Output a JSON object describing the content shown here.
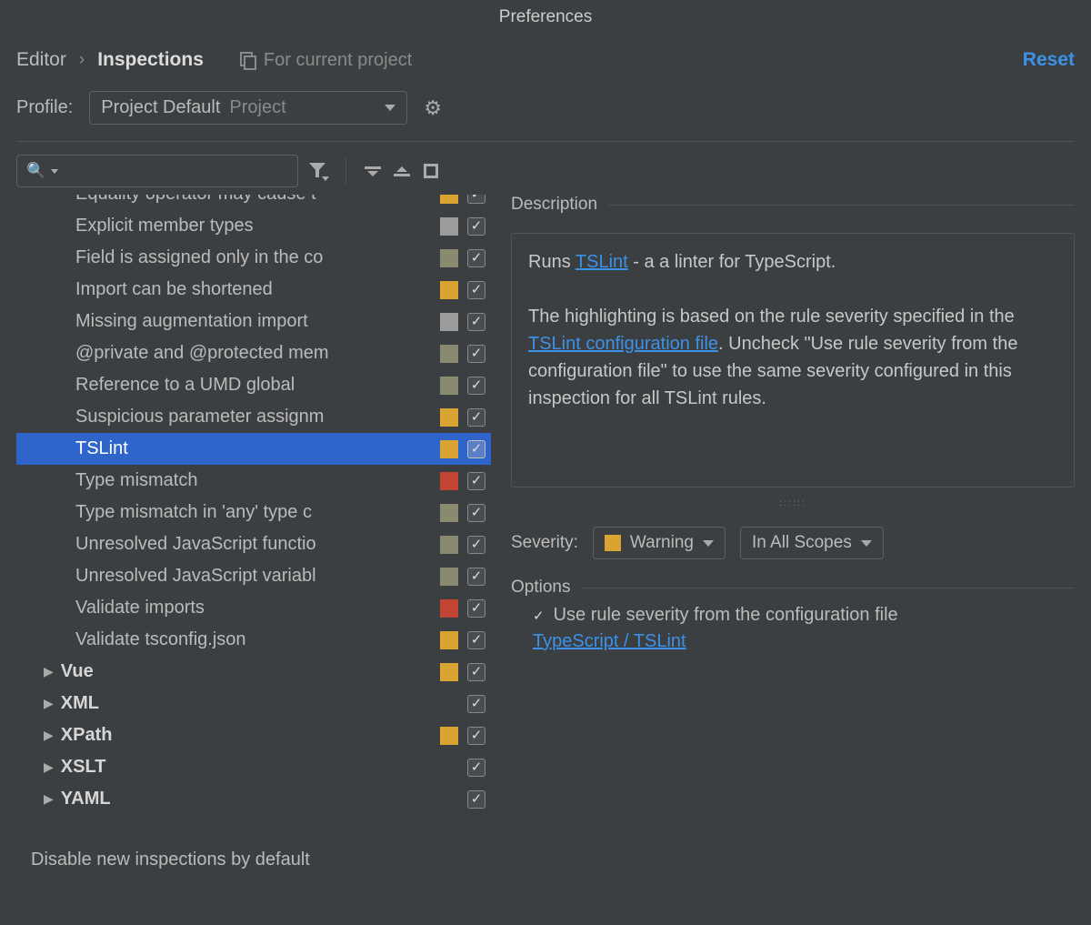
{
  "colors": {
    "accent": "#3b92e8",
    "selection": "#2f65ca",
    "sev_warning": "#d9a431",
    "sev_weak": "#8a8a70",
    "sev_gray": "#9b9b9b",
    "sev_error": "#c24432"
  },
  "window": {
    "title": "Preferences"
  },
  "header": {
    "bc_root": "Editor",
    "bc_current": "Inspections",
    "scope": "For current project",
    "reset": "Reset"
  },
  "profile": {
    "label": "Profile:",
    "name": "Project Default",
    "suffix": "Project"
  },
  "tree": {
    "items": [
      {
        "label": "Equality operator may cause t",
        "indent": 65,
        "sev": "#d9a431",
        "checked": true,
        "cutoff": true
      },
      {
        "label": "Explicit member types",
        "indent": 65,
        "sev": "#9b9b9b",
        "checked": true
      },
      {
        "label": "Field is assigned only in the co",
        "indent": 65,
        "sev": "#8a8a70",
        "checked": true
      },
      {
        "label": "Import can be shortened",
        "indent": 65,
        "sev": "#d9a431",
        "checked": true
      },
      {
        "label": "Missing augmentation import",
        "indent": 65,
        "sev": "#9b9b9b",
        "checked": true
      },
      {
        "label": "@private and @protected mem",
        "indent": 65,
        "sev": "#8a8a70",
        "checked": true
      },
      {
        "label": "Reference to a UMD global",
        "indent": 65,
        "sev": "#8a8a70",
        "checked": true
      },
      {
        "label": "Suspicious parameter assignm",
        "indent": 65,
        "sev": "#d9a431",
        "checked": true
      },
      {
        "label": "TSLint",
        "indent": 65,
        "sev": "#d9a431",
        "checked": true,
        "selected": true
      },
      {
        "label": "Type mismatch",
        "indent": 65,
        "sev": "#c24432",
        "checked": true
      },
      {
        "label": "Type mismatch in 'any' type c",
        "indent": 65,
        "sev": "#8a8a70",
        "checked": true
      },
      {
        "label": "Unresolved JavaScript functio",
        "indent": 65,
        "sev": "#8a8a70",
        "checked": true
      },
      {
        "label": "Unresolved JavaScript variabl",
        "indent": 65,
        "sev": "#8a8a70",
        "checked": true
      },
      {
        "label": "Validate imports",
        "indent": 65,
        "sev": "#c24432",
        "checked": true
      },
      {
        "label": "Validate tsconfig.json",
        "indent": 65,
        "sev": "#d9a431",
        "checked": true
      },
      {
        "label": "Vue",
        "indent": 30,
        "sev": "#d9a431",
        "checked": true,
        "category": true,
        "disc": true
      },
      {
        "label": "XML",
        "indent": 30,
        "sev": "",
        "checked": true,
        "category": true,
        "disc": true
      },
      {
        "label": "XPath",
        "indent": 30,
        "sev": "#d9a431",
        "checked": true,
        "category": true,
        "disc": true
      },
      {
        "label": "XSLT",
        "indent": 30,
        "sev": "",
        "checked": true,
        "category": true,
        "disc": true
      },
      {
        "label": "YAML",
        "indent": 30,
        "sev": "",
        "checked": true,
        "category": true,
        "disc": true
      }
    ]
  },
  "footer": {
    "disable_label": "Disable new inspections by default",
    "checked": false
  },
  "details": {
    "description_title": "Description",
    "desc_prefix": "Runs ",
    "desc_link1": "TSLint",
    "desc_after1": " - a a linter for TypeScript.",
    "desc_para2a": "The highlighting is based on the rule severity specified in the ",
    "desc_link2": "TSLint configuration file",
    "desc_para2b": ". Uncheck \"Use rule severity from the configuration file\" to use the same severity configured in this inspection for all TSLint rules.",
    "severity_label": "Severity:",
    "severity_value": "Warning",
    "severity_color": "#d9a431",
    "scope_value": "In All Scopes",
    "options_title": "Options",
    "option1": "Use rule severity from the configuration file",
    "option1_checked": true,
    "link": "TypeScript / TSLint"
  }
}
